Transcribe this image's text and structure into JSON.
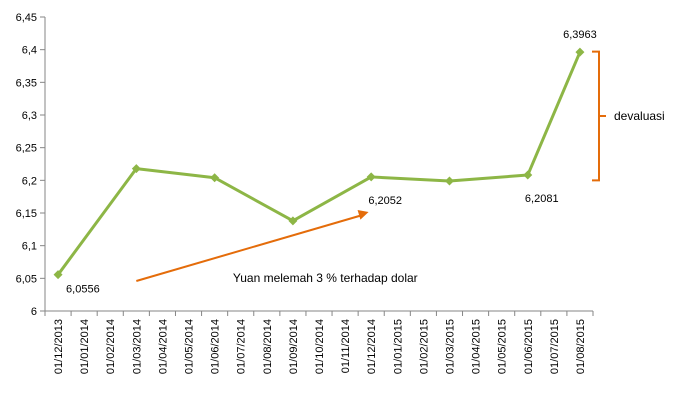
{
  "chart_data": {
    "type": "line",
    "title": "",
    "xlabel": "",
    "ylabel": "",
    "ylim": [
      6,
      6.45
    ],
    "yticks": [
      "6",
      "6,05",
      "6,1",
      "6,15",
      "6,2",
      "6,25",
      "6,3",
      "6,35",
      "6,4",
      "6,45"
    ],
    "grid": false,
    "legend": "none",
    "categories": [
      "01/12/2013",
      "01/01/2014",
      "01/02/2014",
      "01/03/2014",
      "01/04/2014",
      "01/05/2014",
      "01/06/2014",
      "01/07/2014",
      "01/08/2014",
      "01/09/2014",
      "01/10/2014",
      "01/11/2014",
      "01/12/2014",
      "01/01/2015",
      "01/02/2015",
      "01/03/2015",
      "01/04/2015",
      "01/05/2015",
      "01/06/2015",
      "01/07/2015",
      "01/08/2015"
    ],
    "series": [
      {
        "color": "#8DB646",
        "points": [
          {
            "x": "01/12/2013",
            "y": 6.0556
          },
          {
            "x": "01/03/2014",
            "y": 6.218
          },
          {
            "x": "01/06/2014",
            "y": 6.204
          },
          {
            "x": "01/09/2014",
            "y": 6.138
          },
          {
            "x": "01/12/2014",
            "y": 6.2052
          },
          {
            "x": "01/03/2015",
            "y": 6.199
          },
          {
            "x": "01/06/2015",
            "y": 6.2081
          },
          {
            "x": "01/08/2015",
            "y": 6.3963
          }
        ]
      }
    ],
    "data_labels": [
      {
        "text": "6,0556",
        "x": "01/12/2013",
        "y": 6.0556
      },
      {
        "text": "6,2052",
        "x": "01/12/2014",
        "y": 6.2052
      },
      {
        "text": "6,2081",
        "x": "01/06/2015",
        "y": 6.2081
      },
      {
        "text": "6,3963",
        "x": "01/08/2015",
        "y": 6.3963
      }
    ],
    "annotations": {
      "trend_text": "Yuan melemah 3 % terhadap dolar",
      "trend_color": "#E46C0A",
      "bracket_text": "devaluasi",
      "bracket_color": "#E46C0A"
    }
  }
}
